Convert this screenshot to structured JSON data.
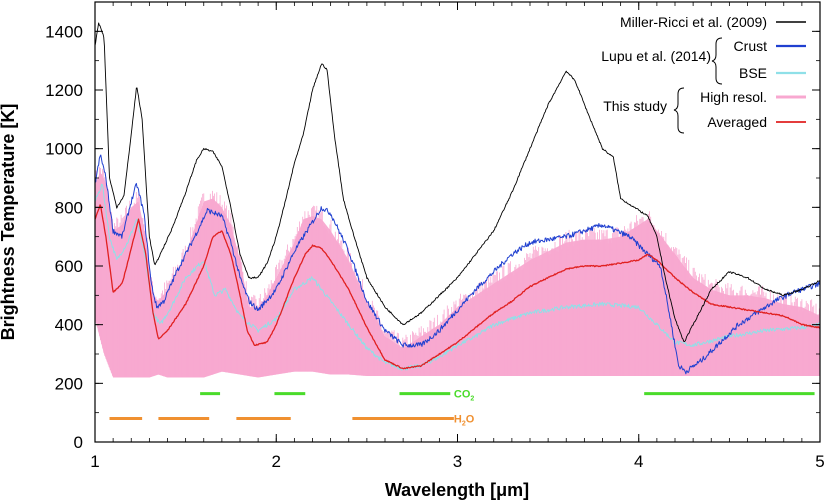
{
  "chart_data": {
    "type": "line",
    "title": "",
    "xlabel": "Wavelength [μm]",
    "ylabel": "Brightness Temperature [K]",
    "xlim": [
      1,
      5
    ],
    "ylim": [
      0,
      1500
    ],
    "x_ticks": [
      1,
      2,
      3,
      4,
      5
    ],
    "x_tick_labels": [
      "1",
      "2",
      "3",
      "4",
      "5"
    ],
    "y_ticks": [
      0,
      200,
      400,
      600,
      800,
      1000,
      1200,
      1400
    ],
    "y_tick_labels": [
      "0",
      "200",
      "400",
      "600",
      "800",
      "1000",
      "1200",
      "1400"
    ],
    "legend": {
      "placement": "top-right",
      "groups": [
        {
          "group_label": "",
          "entries": [
            {
              "name": "Miller-Ricci et al. (2009)",
              "color": "#000000"
            }
          ]
        },
        {
          "group_label": "Lupu et al. (2014)",
          "entries": [
            {
              "name": "Crust",
              "color": "#2040d0"
            },
            {
              "name": "BSE",
              "color": "#8fe0e8"
            }
          ]
        },
        {
          "group_label": "This study",
          "entries": [
            {
              "name": "High resol.",
              "color": "#f8a8d0"
            },
            {
              "name": "Averaged",
              "color": "#e02020"
            }
          ]
        }
      ]
    },
    "series": [
      {
        "name": "Miller-Ricci et al. (2009)",
        "color": "#000000",
        "points": [
          [
            1.0,
            1350
          ],
          [
            1.02,
            1430
          ],
          [
            1.05,
            1380
          ],
          [
            1.08,
            900
          ],
          [
            1.12,
            800
          ],
          [
            1.16,
            840
          ],
          [
            1.2,
            1050
          ],
          [
            1.23,
            1215
          ],
          [
            1.26,
            1100
          ],
          [
            1.3,
            700
          ],
          [
            1.33,
            600
          ],
          [
            1.36,
            640
          ],
          [
            1.42,
            720
          ],
          [
            1.5,
            850
          ],
          [
            1.56,
            960
          ],
          [
            1.6,
            1000
          ],
          [
            1.65,
            990
          ],
          [
            1.7,
            940
          ],
          [
            1.75,
            800
          ],
          [
            1.8,
            640
          ],
          [
            1.85,
            560
          ],
          [
            1.9,
            560
          ],
          [
            1.95,
            610
          ],
          [
            2.0,
            700
          ],
          [
            2.05,
            820
          ],
          [
            2.1,
            950
          ],
          [
            2.15,
            1050
          ],
          [
            2.2,
            1200
          ],
          [
            2.25,
            1290
          ],
          [
            2.28,
            1270
          ],
          [
            2.32,
            1050
          ],
          [
            2.37,
            830
          ],
          [
            2.42,
            720
          ],
          [
            2.5,
            560
          ],
          [
            2.6,
            460
          ],
          [
            2.7,
            400
          ],
          [
            2.8,
            440
          ],
          [
            2.9,
            500
          ],
          [
            3.0,
            560
          ],
          [
            3.1,
            640
          ],
          [
            3.2,
            720
          ],
          [
            3.3,
            850
          ],
          [
            3.4,
            1000
          ],
          [
            3.5,
            1150
          ],
          [
            3.6,
            1265
          ],
          [
            3.65,
            1230
          ],
          [
            3.72,
            1120
          ],
          [
            3.8,
            1000
          ],
          [
            3.86,
            970
          ],
          [
            3.9,
            830
          ],
          [
            4.0,
            790
          ],
          [
            4.05,
            770
          ],
          [
            4.1,
            700
          ],
          [
            4.15,
            550
          ],
          [
            4.2,
            420
          ],
          [
            4.25,
            340
          ],
          [
            4.3,
            400
          ],
          [
            4.4,
            520
          ],
          [
            4.5,
            580
          ],
          [
            4.6,
            560
          ],
          [
            4.7,
            520
          ],
          [
            4.8,
            500
          ],
          [
            4.9,
            520
          ],
          [
            5.0,
            550
          ]
        ]
      },
      {
        "name": "Crust",
        "color": "#2040d0",
        "points": [
          [
            1.0,
            880
          ],
          [
            1.03,
            980
          ],
          [
            1.06,
            900
          ],
          [
            1.1,
            720
          ],
          [
            1.15,
            700
          ],
          [
            1.2,
            820
          ],
          [
            1.23,
            880
          ],
          [
            1.27,
            780
          ],
          [
            1.31,
            540
          ],
          [
            1.34,
            460
          ],
          [
            1.38,
            480
          ],
          [
            1.45,
            580
          ],
          [
            1.55,
            700
          ],
          [
            1.62,
            790
          ],
          [
            1.7,
            770
          ],
          [
            1.75,
            680
          ],
          [
            1.8,
            560
          ],
          [
            1.85,
            480
          ],
          [
            1.9,
            450
          ],
          [
            2.0,
            520
          ],
          [
            2.1,
            650
          ],
          [
            2.2,
            750
          ],
          [
            2.25,
            800
          ],
          [
            2.3,
            780
          ],
          [
            2.4,
            650
          ],
          [
            2.5,
            480
          ],
          [
            2.6,
            380
          ],
          [
            2.7,
            330
          ],
          [
            2.8,
            330
          ],
          [
            2.9,
            380
          ],
          [
            3.0,
            450
          ],
          [
            3.1,
            520
          ],
          [
            3.2,
            580
          ],
          [
            3.3,
            640
          ],
          [
            3.4,
            680
          ],
          [
            3.6,
            700
          ],
          [
            3.8,
            740
          ],
          [
            3.95,
            700
          ],
          [
            4.05,
            640
          ],
          [
            4.12,
            600
          ],
          [
            4.18,
            400
          ],
          [
            4.22,
            260
          ],
          [
            4.26,
            240
          ],
          [
            4.35,
            280
          ],
          [
            4.45,
            340
          ],
          [
            4.55,
            400
          ],
          [
            4.65,
            440
          ],
          [
            4.75,
            480
          ],
          [
            4.85,
            510
          ],
          [
            5.0,
            540
          ]
        ]
      },
      {
        "name": "BSE",
        "color": "#8fe0e8",
        "points": [
          [
            1.0,
            820
          ],
          [
            1.04,
            880
          ],
          [
            1.08,
            700
          ],
          [
            1.12,
            620
          ],
          [
            1.18,
            680
          ],
          [
            1.23,
            760
          ],
          [
            1.28,
            620
          ],
          [
            1.32,
            440
          ],
          [
            1.36,
            400
          ],
          [
            1.42,
            460
          ],
          [
            1.5,
            560
          ],
          [
            1.6,
            620
          ],
          [
            1.66,
            500
          ],
          [
            1.72,
            520
          ],
          [
            1.8,
            430
          ],
          [
            1.9,
            380
          ],
          [
            2.0,
            420
          ],
          [
            2.1,
            520
          ],
          [
            2.2,
            560
          ],
          [
            2.3,
            480
          ],
          [
            2.4,
            400
          ],
          [
            2.5,
            320
          ],
          [
            2.6,
            270
          ],
          [
            2.7,
            250
          ],
          [
            2.8,
            260
          ],
          [
            2.9,
            290
          ],
          [
            3.0,
            330
          ],
          [
            3.1,
            360
          ],
          [
            3.2,
            400
          ],
          [
            3.4,
            440
          ],
          [
            3.6,
            460
          ],
          [
            3.8,
            470
          ],
          [
            4.0,
            460
          ],
          [
            4.1,
            400
          ],
          [
            4.2,
            340
          ],
          [
            4.3,
            330
          ],
          [
            4.5,
            360
          ],
          [
            4.7,
            380
          ],
          [
            4.9,
            390
          ],
          [
            5.0,
            400
          ]
        ]
      },
      {
        "name": "Averaged",
        "color": "#e02020",
        "points": [
          [
            1.0,
            760
          ],
          [
            1.03,
            810
          ],
          [
            1.06,
            700
          ],
          [
            1.1,
            510
          ],
          [
            1.15,
            540
          ],
          [
            1.2,
            660
          ],
          [
            1.24,
            760
          ],
          [
            1.28,
            640
          ],
          [
            1.32,
            440
          ],
          [
            1.35,
            350
          ],
          [
            1.4,
            380
          ],
          [
            1.5,
            470
          ],
          [
            1.6,
            600
          ],
          [
            1.65,
            700
          ],
          [
            1.7,
            720
          ],
          [
            1.75,
            640
          ],
          [
            1.8,
            500
          ],
          [
            1.84,
            380
          ],
          [
            1.88,
            330
          ],
          [
            1.95,
            340
          ],
          [
            2.0,
            400
          ],
          [
            2.1,
            560
          ],
          [
            2.16,
            640
          ],
          [
            2.2,
            670
          ],
          [
            2.25,
            660
          ],
          [
            2.3,
            620
          ],
          [
            2.4,
            520
          ],
          [
            2.5,
            390
          ],
          [
            2.6,
            280
          ],
          [
            2.7,
            250
          ],
          [
            2.8,
            260
          ],
          [
            2.9,
            300
          ],
          [
            3.0,
            340
          ],
          [
            3.1,
            390
          ],
          [
            3.2,
            440
          ],
          [
            3.3,
            480
          ],
          [
            3.4,
            530
          ],
          [
            3.5,
            560
          ],
          [
            3.6,
            590
          ],
          [
            3.7,
            600
          ],
          [
            3.8,
            600
          ],
          [
            3.9,
            610
          ],
          [
            4.0,
            620
          ],
          [
            4.05,
            640
          ],
          [
            4.1,
            620
          ],
          [
            4.2,
            560
          ],
          [
            4.3,
            510
          ],
          [
            4.4,
            470
          ],
          [
            4.5,
            460
          ],
          [
            4.6,
            450
          ],
          [
            4.7,
            440
          ],
          [
            4.8,
            430
          ],
          [
            4.9,
            400
          ],
          [
            5.0,
            390
          ]
        ]
      }
    ],
    "high_resolution_band": {
      "name": "High resol.",
      "color": "#f8a8d0",
      "lower_points": [
        [
          1.0,
          420
        ],
        [
          1.05,
          300
        ],
        [
          1.1,
          220
        ],
        [
          1.2,
          220
        ],
        [
          1.3,
          220
        ],
        [
          1.35,
          230
        ],
        [
          1.4,
          220
        ],
        [
          1.6,
          220
        ],
        [
          1.7,
          240
        ],
        [
          1.8,
          230
        ],
        [
          1.9,
          220
        ],
        [
          2.0,
          230
        ],
        [
          2.1,
          240
        ],
        [
          2.2,
          240
        ],
        [
          2.3,
          230
        ],
        [
          2.4,
          230
        ],
        [
          2.5,
          225
        ],
        [
          2.6,
          225
        ],
        [
          2.7,
          225
        ],
        [
          2.8,
          225
        ],
        [
          2.9,
          225
        ],
        [
          3.0,
          225
        ],
        [
          3.2,
          225
        ],
        [
          3.4,
          225
        ],
        [
          3.6,
          225
        ],
        [
          3.8,
          225
        ],
        [
          4.0,
          225
        ],
        [
          4.2,
          225
        ],
        [
          4.4,
          225
        ],
        [
          4.6,
          225
        ],
        [
          4.8,
          225
        ],
        [
          5.0,
          225
        ]
      ],
      "upper_points": [
        [
          1.0,
          880
        ],
        [
          1.03,
          920
        ],
        [
          1.06,
          880
        ],
        [
          1.1,
          720
        ],
        [
          1.15,
          740
        ],
        [
          1.2,
          800
        ],
        [
          1.24,
          820
        ],
        [
          1.28,
          700
        ],
        [
          1.32,
          500
        ],
        [
          1.35,
          480
        ],
        [
          1.4,
          520
        ],
        [
          1.5,
          640
        ],
        [
          1.6,
          820
        ],
        [
          1.65,
          830
        ],
        [
          1.7,
          800
        ],
        [
          1.75,
          740
        ],
        [
          1.8,
          620
        ],
        [
          1.85,
          460
        ],
        [
          1.9,
          460
        ],
        [
          1.95,
          500
        ],
        [
          2.0,
          560
        ],
        [
          2.1,
          680
        ],
        [
          2.15,
          760
        ],
        [
          2.2,
          770
        ],
        [
          2.25,
          760
        ],
        [
          2.3,
          720
        ],
        [
          2.4,
          620
        ],
        [
          2.5,
          480
        ],
        [
          2.6,
          360
        ],
        [
          2.7,
          320
        ],
        [
          2.8,
          360
        ],
        [
          2.9,
          400
        ],
        [
          3.0,
          460
        ],
        [
          3.1,
          500
        ],
        [
          3.2,
          540
        ],
        [
          3.3,
          580
        ],
        [
          3.4,
          620
        ],
        [
          3.5,
          650
        ],
        [
          3.6,
          680
        ],
        [
          3.7,
          690
        ],
        [
          3.8,
          690
        ],
        [
          3.9,
          700
        ],
        [
          4.0,
          740
        ],
        [
          4.05,
          760
        ],
        [
          4.1,
          720
        ],
        [
          4.2,
          640
        ],
        [
          4.3,
          560
        ],
        [
          4.4,
          520
        ],
        [
          4.5,
          500
        ],
        [
          4.6,
          500
        ],
        [
          4.7,
          490
        ],
        [
          4.8,
          470
        ],
        [
          4.9,
          460
        ],
        [
          5.0,
          430
        ]
      ]
    },
    "absorption_bands": [
      {
        "molecule": "CO",
        "subscript": "2",
        "color": "#4adb2a",
        "level": 165,
        "label_x": 2.98,
        "ranges": [
          [
            1.58,
            1.69
          ],
          [
            1.99,
            2.16
          ],
          [
            2.68,
            2.96
          ],
          [
            4.03,
            4.97
          ]
        ]
      },
      {
        "molecule": "H",
        "subscript": "2",
        "suffix": "O",
        "color": "#f09030",
        "level": 80,
        "label_x": 2.98,
        "ranges": [
          [
            1.08,
            1.26
          ],
          [
            1.35,
            1.63
          ],
          [
            1.78,
            2.08
          ],
          [
            2.42,
            2.98
          ]
        ]
      }
    ]
  }
}
